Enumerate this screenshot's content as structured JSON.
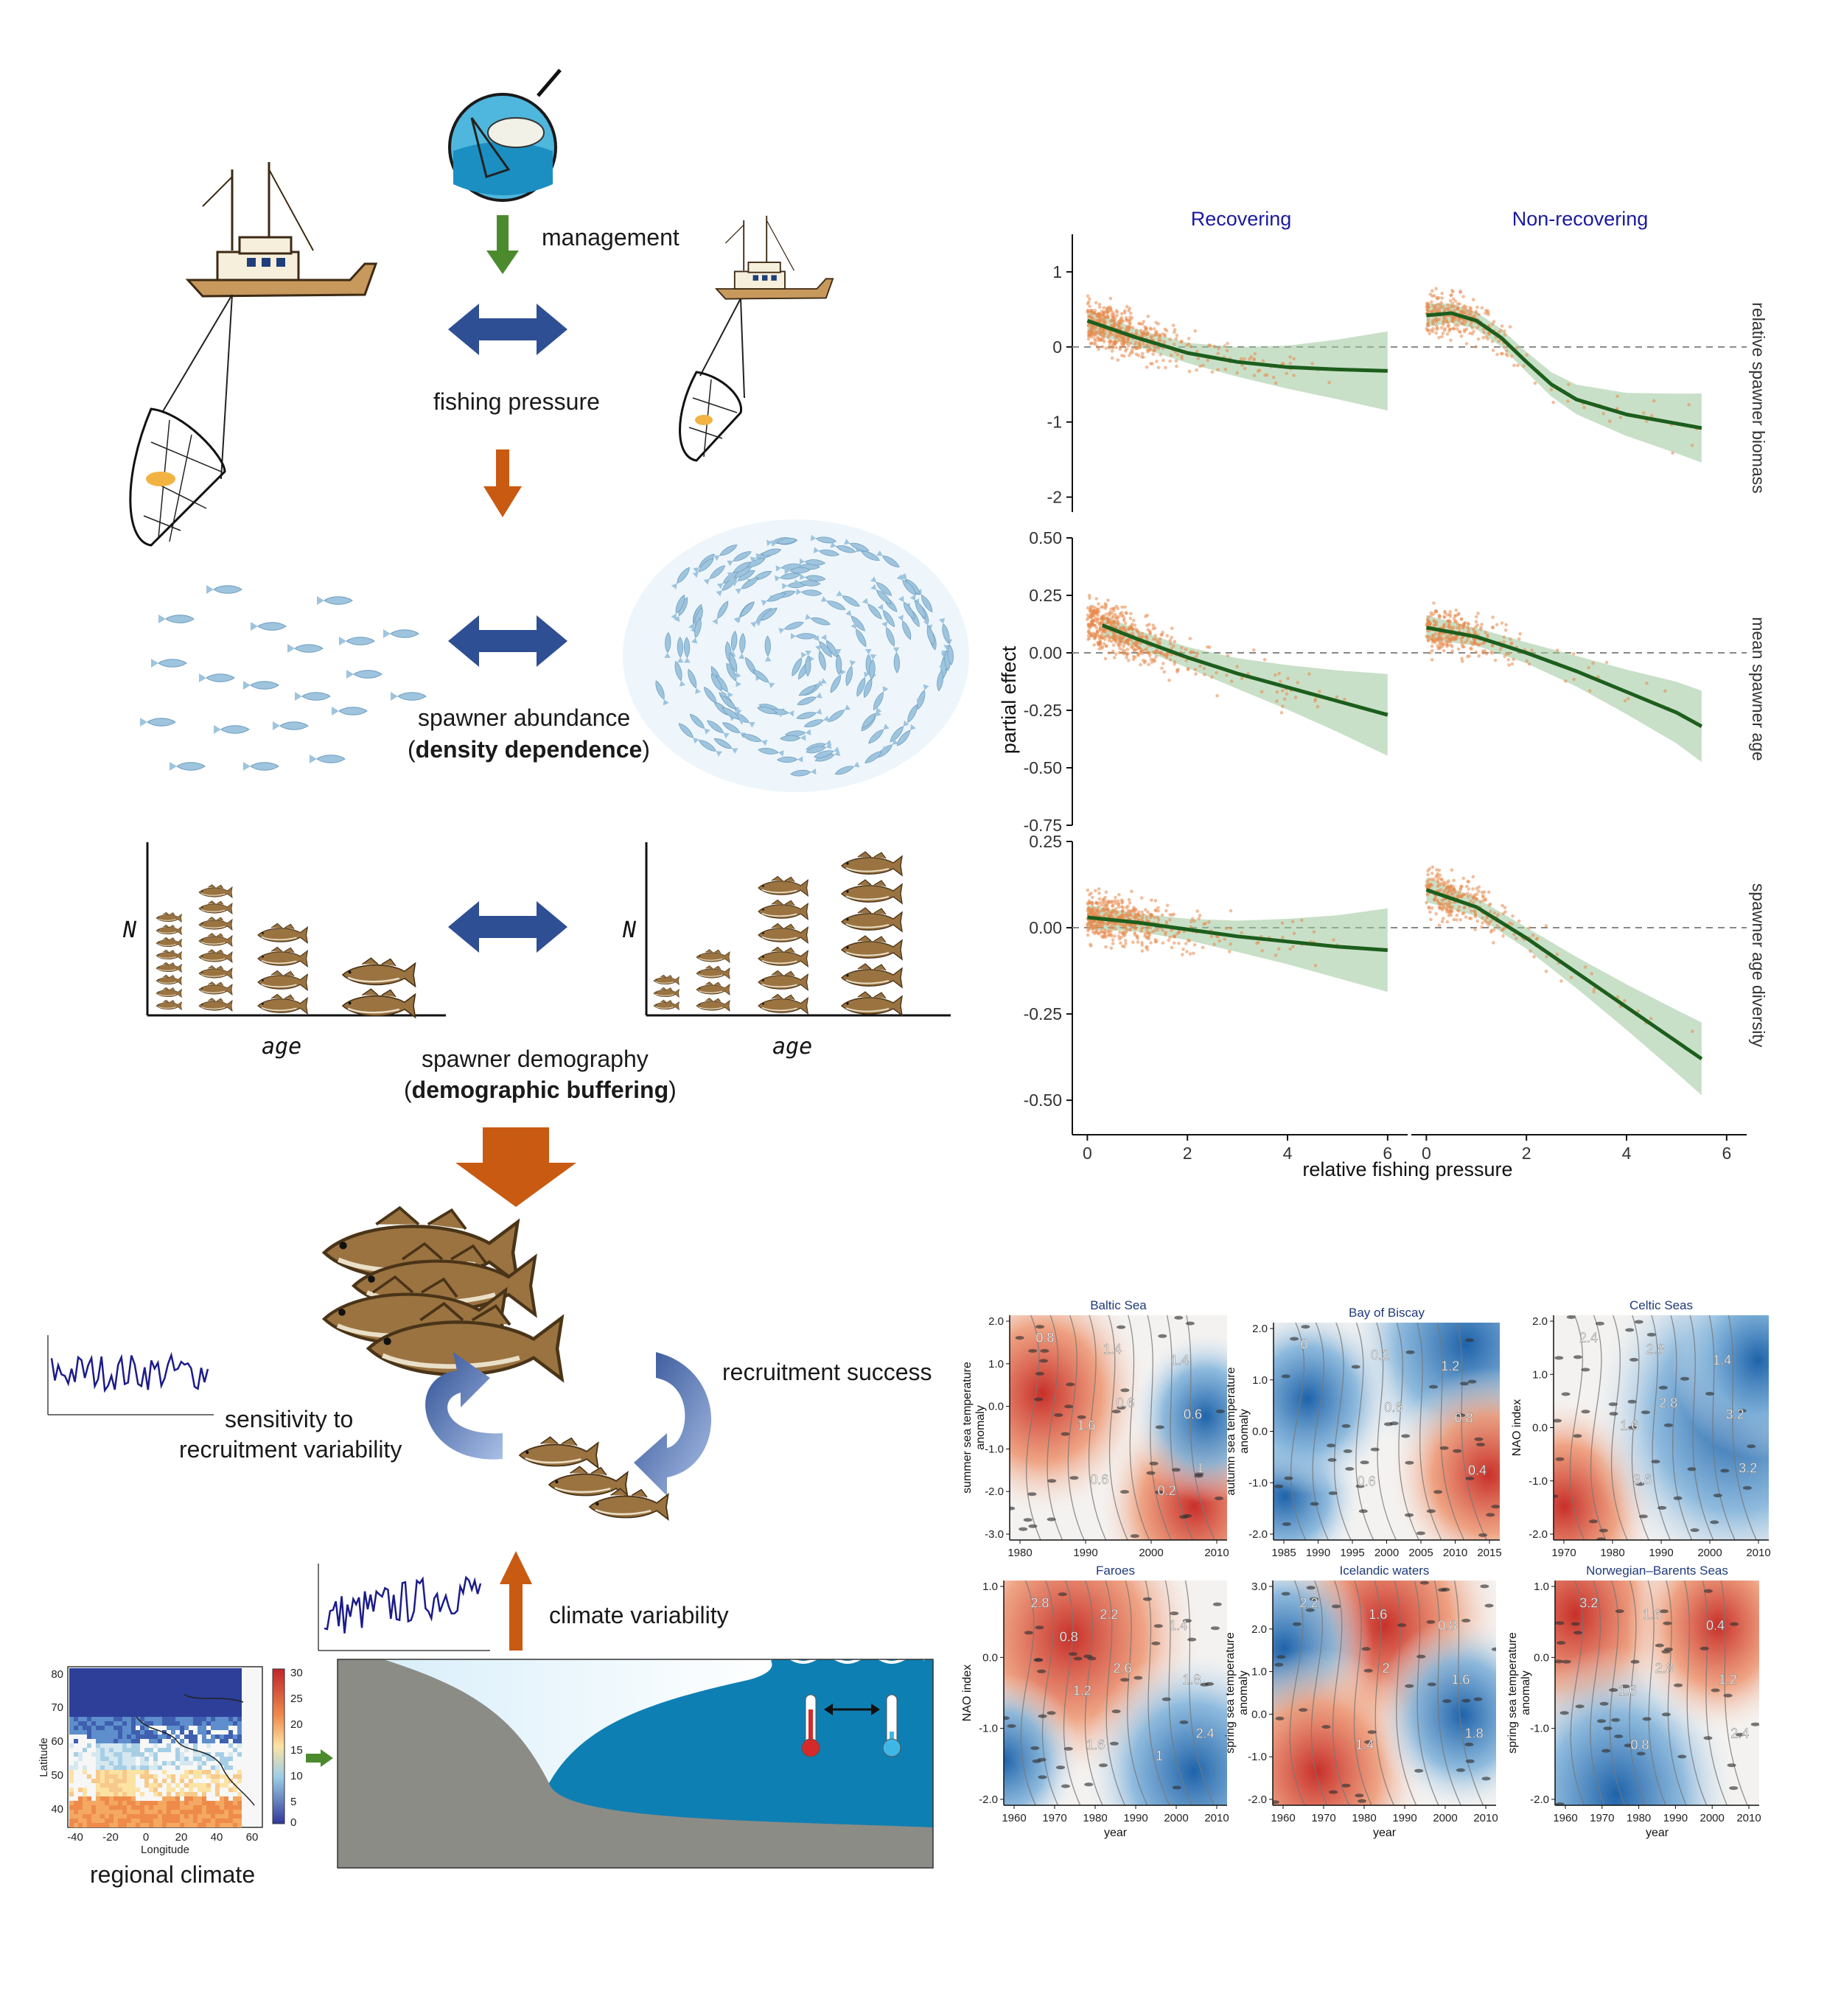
{
  "left": {
    "management": "management",
    "fishing_pressure": "fishing pressure",
    "spawner_abundance": "spawner abundance",
    "density_open": "(",
    "density_bold": "density dependence",
    "density_close": ")",
    "spawner_demography": "spawner demography",
    "demo_open": "(",
    "demo_bold": "demographic buffering",
    "demo_close": ")",
    "axis_n": "N",
    "axis_age": "age",
    "recruitment_success": "recruitment success",
    "sensitivity_line1": "sensitivity to",
    "sensitivity_line2": "recruitment variability",
    "climate_variability": "climate variability",
    "regional_climate": "regional climate",
    "map": {
      "ylabel": "Latitude",
      "xlabel": "Longitude",
      "yticks": [
        "80",
        "70",
        "60",
        "50",
        "40"
      ],
      "xticks": [
        "-40",
        "-20",
        "0",
        "20",
        "40",
        "60"
      ],
      "colorbar_ticks": [
        "30",
        "25",
        "20",
        "15",
        "10",
        "5",
        "0"
      ]
    },
    "colors": {
      "arrow_blue": "#2f4f94",
      "arrow_orange": "#c85a12",
      "arrow_green": "#4c8a2e",
      "ocean": "#0e7fb3",
      "land": "#8c8c86"
    }
  },
  "chart_data": [
    {
      "type": "scatter",
      "title": "",
      "xlabel": "relative fishing pressure",
      "ylabel": "partial effect",
      "columns": [
        "Recovering",
        "Non-recovering"
      ],
      "rows": [
        {
          "name": "relative spawner biomass",
          "yticks": [
            "1",
            "0",
            "-1",
            "-2"
          ],
          "ylim": [
            -2.2,
            1.5
          ],
          "recovering_fit": [
            [
              0,
              0.35
            ],
            [
              1,
              0.12
            ],
            [
              2,
              -0.08
            ],
            [
              3,
              -0.2
            ],
            [
              4,
              -0.27
            ],
            [
              5,
              -0.3
            ],
            [
              6,
              -0.32
            ]
          ],
          "nonrecovering_fit": [
            [
              0,
              0.42
            ],
            [
              0.5,
              0.45
            ],
            [
              1,
              0.35
            ],
            [
              1.5,
              0.12
            ],
            [
              2,
              -0.2
            ],
            [
              2.5,
              -0.5
            ],
            [
              3,
              -0.7
            ],
            [
              4,
              -0.9
            ],
            [
              5,
              -1.02
            ],
            [
              5.5,
              -1.08
            ]
          ]
        },
        {
          "name": "mean spawner age",
          "yticks": [
            "0.50",
            "0.25",
            "0.00",
            "-0.25",
            "-0.50",
            "-0.75"
          ],
          "ylim": [
            -0.75,
            0.5
          ],
          "recovering_fit": [
            [
              0.3,
              0.12
            ],
            [
              1,
              0.06
            ],
            [
              2,
              -0.02
            ],
            [
              3,
              -0.09
            ],
            [
              4,
              -0.15
            ],
            [
              5,
              -0.21
            ],
            [
              6,
              -0.27
            ]
          ],
          "nonrecovering_fit": [
            [
              0,
              0.11
            ],
            [
              1,
              0.07
            ],
            [
              2,
              0.0
            ],
            [
              3,
              -0.08
            ],
            [
              4,
              -0.17
            ],
            [
              5,
              -0.26
            ],
            [
              5.5,
              -0.32
            ]
          ]
        },
        {
          "name": "spawner age diversity",
          "yticks": [
            "0.25",
            "0.00",
            "-0.25",
            "-0.50"
          ],
          "ylim": [
            -0.6,
            0.25
          ],
          "recovering_fit": [
            [
              0,
              0.03
            ],
            [
              1,
              0.015
            ],
            [
              2,
              -0.005
            ],
            [
              3,
              -0.025
            ],
            [
              4,
              -0.04
            ],
            [
              5,
              -0.055
            ],
            [
              6,
              -0.065
            ]
          ],
          "nonrecovering_fit": [
            [
              0,
              0.11
            ],
            [
              1,
              0.06
            ],
            [
              2,
              -0.03
            ],
            [
              3,
              -0.13
            ],
            [
              4,
              -0.23
            ],
            [
              5,
              -0.33
            ],
            [
              5.5,
              -0.38
            ]
          ]
        }
      ],
      "xticks": [
        "0",
        "2",
        "4",
        "6"
      ],
      "colors": {
        "points": "#e8894a",
        "fit": "#1d5e1d",
        "ribbon": "#9cc79a"
      }
    },
    {
      "type": "heatmap",
      "title": "",
      "panels": [
        {
          "title": "Baltic Sea",
          "ylabel": "summer sea temperature anomaly",
          "yticks": [
            "2.0",
            "1.0",
            "0.0",
            "-1.0",
            "-2.0",
            "-3.0"
          ],
          "xticks": [
            "1980",
            "1990",
            "2000",
            "2010"
          ],
          "labels": [
            "0.8",
            "0.6",
            "1",
            "1.4",
            "0.6",
            "0.6",
            "1.4",
            "1.6",
            "0.2"
          ]
        },
        {
          "title": "Bay of Biscay",
          "ylabel": "autumn sea temperature anomaly",
          "yticks": [
            "2.0",
            "1.0",
            "0.0",
            "-1.0",
            "-2.0"
          ],
          "xticks": [
            "1985",
            "1990",
            "1995",
            "2000",
            "2005",
            "2010",
            "2015"
          ],
          "labels": [
            "0",
            "0.6",
            "0.4",
            "0.2",
            "0.8",
            "0.6",
            "1.2"
          ]
        },
        {
          "title": "Celtic Seas",
          "ylabel": "NAO index",
          "yticks": [
            "2.0",
            "1.0",
            "0.0",
            "-1.0",
            "-2.0"
          ],
          "xticks": [
            "1970",
            "1980",
            "1990",
            "2000",
            "2010"
          ],
          "labels": [
            "2.4",
            "2.8",
            "3.2",
            "2.8",
            "3.2",
            "3.6",
            "1.4",
            "1.6"
          ]
        },
        {
          "title": "Faroes",
          "ylabel": "NAO index",
          "yticks": [
            "1.0",
            "0.0",
            "-1.0",
            "-2.0"
          ],
          "xticks": [
            "1960",
            "1970",
            "1980",
            "1990",
            "2000",
            "2010"
          ],
          "labels": [
            "2.8",
            "2.6",
            "2.4",
            "2.2",
            "1.8",
            "1.6",
            "1.4",
            "1.2",
            "1",
            "0.8"
          ]
        },
        {
          "title": "Icelandic waters",
          "ylabel": "spring sea temperature anomaly",
          "yticks": [
            "3.0",
            "2.0",
            "1.0",
            "0.0",
            "-1.0",
            "-2.0"
          ],
          "xticks": [
            "1960",
            "1970",
            "1980",
            "1990",
            "2000",
            "2010"
          ],
          "labels": [
            "2.2",
            "2",
            "1.8",
            "1.6",
            "1.6",
            "1.4",
            "0.8"
          ]
        },
        {
          "title": "Norwegian–Barents Seas",
          "ylabel": "spring sea temperature anomaly",
          "yticks": [
            "1.0",
            "0.0",
            "-1.0",
            "-2.0"
          ],
          "xticks": [
            "1960",
            "1970",
            "1980",
            "1990",
            "2000",
            "2010"
          ],
          "labels": [
            "3.2",
            "2.8",
            "2.4",
            "1.6",
            "1.2",
            "0.8",
            "0.4",
            "1.6"
          ]
        }
      ],
      "xlabel": "year",
      "colors": {
        "warm": "#c8302a",
        "cool": "#2166ac",
        "neutral": "#f4f4f4"
      }
    }
  ]
}
